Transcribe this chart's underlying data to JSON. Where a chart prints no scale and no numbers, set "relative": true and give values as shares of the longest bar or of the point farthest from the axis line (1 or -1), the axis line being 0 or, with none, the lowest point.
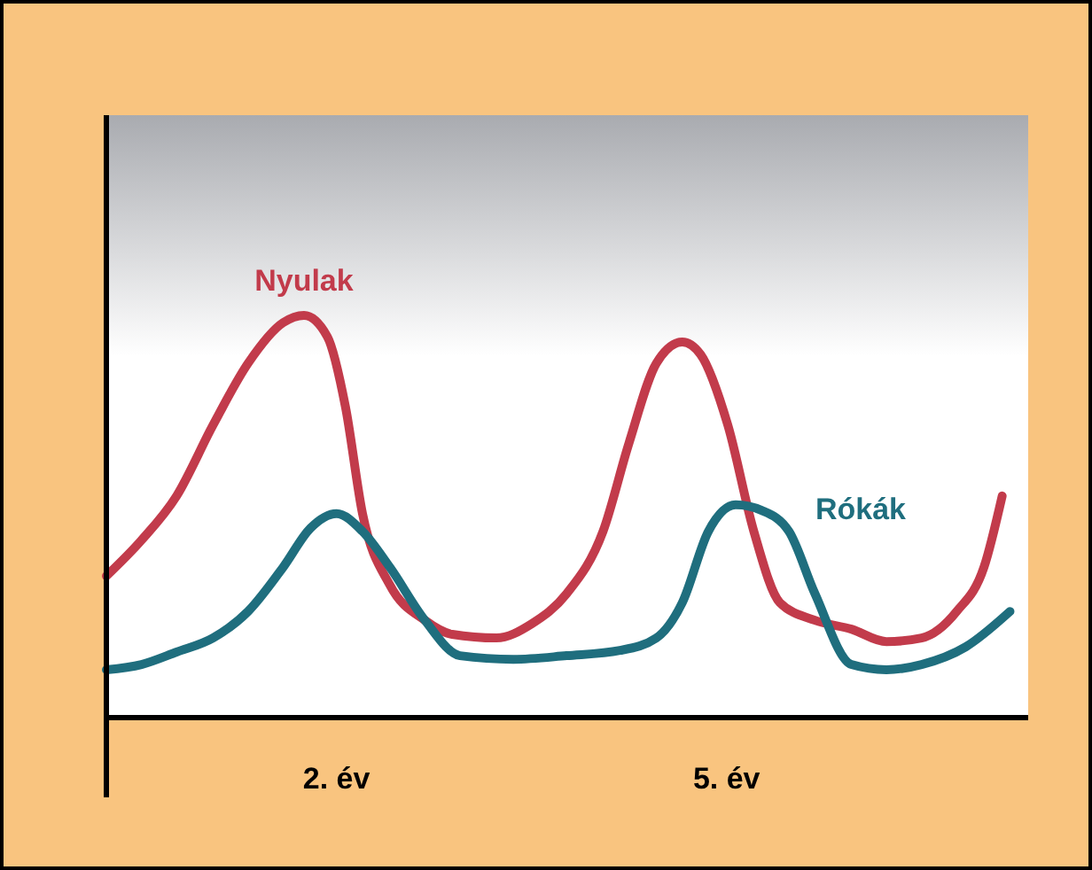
{
  "chart_data": {
    "type": "line",
    "relative": true,
    "x": [
      0.23,
      0.5,
      0.77,
      1.05,
      1.32,
      1.59,
      1.75,
      1.93,
      2.07,
      2.2,
      2.41,
      2.68,
      2.89,
      3.23,
      3.5,
      3.77,
      4.05,
      4.25,
      4.46,
      4.66,
      4.8,
      5.01,
      5.21,
      5.41,
      5.68,
      5.96,
      6.23,
      6.5,
      6.77,
      6.98,
      7.12
    ],
    "xlim": [
      0.23,
      7.32
    ],
    "xticks": [
      {
        "value": 2,
        "label": "2. év"
      },
      {
        "value": 5,
        "label": "5. év"
      }
    ],
    "tick_labels": "x",
    "grid": false,
    "marker": "none",
    "line_style": "solid",
    "series": [
      {
        "name": "Nyulak",
        "color": "#c23b4b",
        "values": [
          0.352,
          0.441,
          0.551,
          0.727,
          0.881,
          0.982,
          1,
          0.947,
          0.771,
          0.507,
          0.33,
          0.242,
          0.207,
          0.198,
          0.233,
          0.308,
          0.463,
          0.683,
          0.881,
          0.934,
          0.903,
          0.727,
          0.463,
          0.286,
          0.242,
          0.22,
          0.189,
          0.198,
          0.264,
          0.374,
          0.551
        ]
      },
      {
        "name": "Rókák",
        "color": "#1f6e7e",
        "x": [
          0.23,
          0.5,
          0.77,
          1.05,
          1.32,
          1.59,
          1.8,
          2.0,
          2.2,
          2.41,
          2.68,
          2.95,
          3.36,
          3.77,
          4.18,
          4.46,
          4.66,
          4.86,
          5.07,
          5.27,
          5.48,
          5.68,
          5.96,
          6.23,
          6.5,
          6.84,
          7.18
        ],
        "values": [
          0.119,
          0.132,
          0.163,
          0.198,
          0.264,
          0.374,
          0.471,
          0.507,
          0.463,
          0.374,
          0.242,
          0.154,
          0.145,
          0.154,
          0.167,
          0.198,
          0.286,
          0.463,
          0.529,
          0.515,
          0.463,
          0.308,
          0.132,
          0.119,
          0.132,
          0.176,
          0.264
        ]
      }
    ]
  }
}
